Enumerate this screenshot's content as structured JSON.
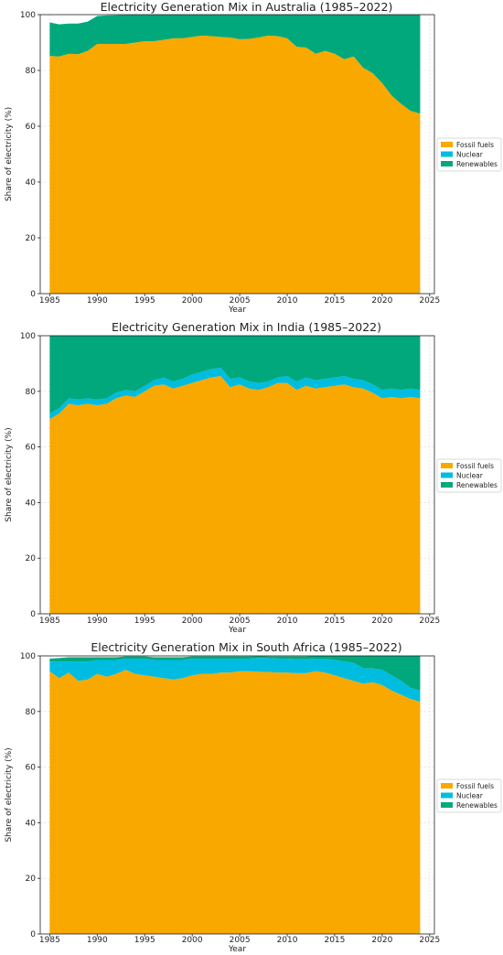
{
  "chart_data": [
    {
      "type": "area",
      "stacked": true,
      "title": "Electricity Generation Mix in Australia (1985–2022)",
      "xlabel": "Year",
      "ylabel": "Share of electricity (%)",
      "xlim": [
        1984,
        2025.5
      ],
      "ylim": [
        0,
        100
      ],
      "xticks": [
        1985,
        1990,
        1995,
        2000,
        2005,
        2010,
        2015,
        2020,
        2025
      ],
      "yticks": [
        0,
        20,
        40,
        60,
        80,
        100
      ],
      "grid": true,
      "legend": "right",
      "x": [
        1985,
        1986,
        1987,
        1988,
        1989,
        1990,
        1991,
        1992,
        1993,
        1994,
        1995,
        1996,
        1997,
        1998,
        1999,
        2000,
        2001,
        2002,
        2003,
        2004,
        2005,
        2006,
        2007,
        2008,
        2009,
        2010,
        2011,
        2012,
        2013,
        2014,
        2015,
        2016,
        2017,
        2018,
        2019,
        2020,
        2021,
        2022,
        2023,
        2024
      ],
      "series": [
        {
          "name": "Fossil fuels",
          "color": "#F9A800",
          "values": [
            85.2,
            85.0,
            86.0,
            85.8,
            87.0,
            89.5,
            89.5,
            89.5,
            89.5,
            90.0,
            90.5,
            90.5,
            91.0,
            91.5,
            91.5,
            92.0,
            92.5,
            92.3,
            92.0,
            91.8,
            91.2,
            91.3,
            91.8,
            92.5,
            92.3,
            91.5,
            88.5,
            88.2,
            86.0,
            87.0,
            86.0,
            84.0,
            85.0,
            81.0,
            79.0,
            75.5,
            71.0,
            68.0,
            65.5,
            64.5
          ]
        },
        {
          "name": "Nuclear",
          "color": "#00BCE0",
          "values": [
            0,
            0,
            0,
            0,
            0,
            0,
            0,
            0,
            0,
            0,
            0,
            0,
            0,
            0,
            0,
            0,
            0,
            0,
            0,
            0,
            0,
            0,
            0,
            0,
            0,
            0,
            0,
            0,
            0,
            0,
            0,
            0,
            0,
            0,
            0,
            0,
            0,
            0,
            0,
            0
          ]
        },
        {
          "name": "Renewables",
          "color": "#00A87C",
          "values": [
            12.0,
            11.5,
            10.8,
            11.0,
            10.5,
            10.0,
            10.2,
            10.3,
            10.4,
            10.0,
            9.4,
            9.5,
            9.0,
            8.5,
            8.5,
            8.0,
            7.5,
            7.7,
            8.0,
            8.2,
            8.8,
            8.7,
            8.2,
            7.5,
            7.7,
            8.5,
            11.5,
            11.8,
            14.0,
            13.0,
            14.0,
            16.0,
            15.0,
            19.0,
            21.0,
            24.5,
            29.0,
            32.0,
            34.5,
            35.5
          ]
        }
      ]
    },
    {
      "type": "area",
      "stacked": true,
      "title": "Electricity Generation Mix in India (1985–2022)",
      "xlabel": "Year",
      "ylabel": "Share of electricity (%)",
      "xlim": [
        1984,
        2025.5
      ],
      "ylim": [
        0,
        100
      ],
      "xticks": [
        1985,
        1990,
        1995,
        2000,
        2005,
        2010,
        2015,
        2020,
        2025
      ],
      "yticks": [
        0,
        20,
        40,
        60,
        80,
        100
      ],
      "grid": true,
      "legend": "right",
      "x": [
        1985,
        1986,
        1987,
        1988,
        1989,
        1990,
        1991,
        1992,
        1993,
        1994,
        1995,
        1996,
        1997,
        1998,
        1999,
        2000,
        2001,
        2002,
        2003,
        2004,
        2005,
        2006,
        2007,
        2008,
        2009,
        2010,
        2011,
        2012,
        2013,
        2014,
        2015,
        2016,
        2017,
        2018,
        2019,
        2020,
        2021,
        2022,
        2023,
        2024
      ],
      "series": [
        {
          "name": "Fossil fuels",
          "color": "#F9A800",
          "values": [
            70.0,
            72.0,
            75.5,
            75.0,
            75.5,
            75.0,
            75.5,
            77.5,
            78.5,
            78.0,
            80.0,
            82.0,
            82.5,
            81.0,
            82.0,
            83.0,
            84.0,
            85.0,
            85.5,
            81.5,
            82.5,
            81.0,
            80.5,
            81.5,
            83.0,
            83.0,
            80.5,
            82.0,
            81.0,
            81.5,
            82.0,
            82.5,
            81.5,
            81.0,
            79.5,
            77.5,
            78.0,
            77.5,
            78.0,
            77.5
          ]
        },
        {
          "name": "Nuclear",
          "color": "#00BCE0",
          "values": [
            2.0,
            2.0,
            2.0,
            2.0,
            2.0,
            2.0,
            2.0,
            2.0,
            2.0,
            2.0,
            2.0,
            2.0,
            2.5,
            2.5,
            2.5,
            3.0,
            3.0,
            3.0,
            3.0,
            3.0,
            2.5,
            2.5,
            2.5,
            2.0,
            2.0,
            2.5,
            3.0,
            3.0,
            3.0,
            3.0,
            3.0,
            3.0,
            3.0,
            3.0,
            3.0,
            3.0,
            3.0,
            3.0,
            3.0,
            3.0
          ]
        },
        {
          "name": "Renewables",
          "color": "#00A87C",
          "values": [
            28.0,
            26.0,
            22.5,
            23.0,
            22.5,
            23.0,
            22.5,
            20.5,
            19.5,
            20.0,
            18.0,
            16.0,
            15.0,
            16.5,
            15.5,
            14.0,
            13.0,
            12.0,
            11.5,
            15.5,
            15.0,
            16.5,
            17.0,
            16.5,
            15.0,
            14.5,
            16.5,
            15.0,
            16.0,
            15.5,
            15.0,
            14.5,
            15.5,
            16.0,
            17.5,
            19.5,
            19.0,
            19.5,
            19.0,
            19.5
          ]
        }
      ]
    },
    {
      "type": "area",
      "stacked": true,
      "title": "Electricity Generation Mix in South Africa (1985–2022)",
      "xlabel": "Year",
      "ylabel": "Share of electricity (%)",
      "xlim": [
        1984,
        2025.5
      ],
      "ylim": [
        0,
        100
      ],
      "xticks": [
        1985,
        1990,
        1995,
        2000,
        2005,
        2010,
        2015,
        2020,
        2025
      ],
      "yticks": [
        0,
        20,
        40,
        60,
        80,
        100
      ],
      "grid": true,
      "legend": "right",
      "x": [
        1985,
        1986,
        1987,
        1988,
        1989,
        1990,
        1991,
        1992,
        1993,
        1994,
        1995,
        1996,
        1997,
        1998,
        1999,
        2000,
        2001,
        2002,
        2003,
        2004,
        2005,
        2006,
        2007,
        2008,
        2009,
        2010,
        2011,
        2012,
        2013,
        2014,
        2015,
        2016,
        2017,
        2018,
        2019,
        2020,
        2021,
        2022,
        2023,
        2024
      ],
      "series": [
        {
          "name": "Fossil fuels",
          "color": "#F9A800",
          "values": [
            94.5,
            92.0,
            94.0,
            91.0,
            91.5,
            93.5,
            92.5,
            93.5,
            95.0,
            93.5,
            93.0,
            92.5,
            92.0,
            91.5,
            92.0,
            93.0,
            93.5,
            93.5,
            94.0,
            94.0,
            94.5,
            94.5,
            94.3,
            94.2,
            94.0,
            94.0,
            93.8,
            93.8,
            94.5,
            94.0,
            93.0,
            92.0,
            91.0,
            90.0,
            90.5,
            89.5,
            87.5,
            86.0,
            84.5,
            83.5
          ]
        },
        {
          "name": "Nuclear",
          "color": "#00BCE0",
          "values": [
            3.5,
            6.0,
            4.0,
            7.0,
            6.5,
            5.0,
            6.0,
            5.0,
            4.0,
            5.5,
            6.0,
            6.0,
            6.5,
            7.0,
            6.5,
            6.0,
            5.5,
            5.5,
            5.0,
            5.0,
            4.5,
            4.5,
            5.0,
            5.0,
            5.0,
            5.0,
            5.0,
            5.0,
            4.5,
            5.0,
            5.5,
            6.0,
            6.5,
            5.5,
            5.0,
            5.5,
            5.5,
            5.0,
            4.0,
            4.0
          ]
        },
        {
          "name": "Renewables",
          "color": "#00A87C",
          "values": [
            1.0,
            1.2,
            1.5,
            1.5,
            1.5,
            1.0,
            1.0,
            1.0,
            0.8,
            0.8,
            0.8,
            1.0,
            1.0,
            1.0,
            1.0,
            0.8,
            0.8,
            0.8,
            0.8,
            0.8,
            0.8,
            0.8,
            0.6,
            0.6,
            0.8,
            0.8,
            1.0,
            1.0,
            1.0,
            1.0,
            1.5,
            2.0,
            2.5,
            4.5,
            4.5,
            5.0,
            7.0,
            9.0,
            11.5,
            12.5
          ]
        }
      ]
    }
  ]
}
